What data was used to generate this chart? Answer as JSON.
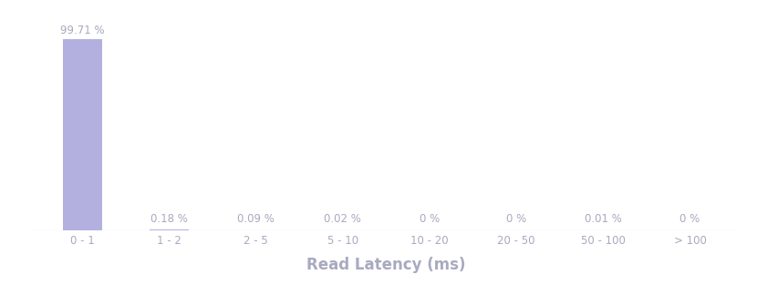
{
  "categories": [
    "0 - 1",
    "1 - 2",
    "2 - 5",
    "5 - 10",
    "10 - 20",
    "20 - 50",
    "50 - 100",
    "> 100"
  ],
  "values": [
    99.71,
    0.18,
    0.09,
    0.02,
    0.0,
    0.0,
    0.01,
    0.0
  ],
  "bar_labels": [
    "99.71 %",
    "0.18 %",
    "0.09 %",
    "0.02 %",
    "0 %",
    "0 %",
    "0.01 %",
    "0 %"
  ],
  "bar_color": "#b3b0e0",
  "xlabel": "Read Latency (ms)",
  "background_color": "#ffffff",
  "text_color": "#a8aabf",
  "label_fontsize": 8.5,
  "xlabel_fontsize": 12,
  "ylim": [
    0,
    108
  ],
  "bar_width": 0.45,
  "axhline_color": "#d4d6e0",
  "axhline_lw": 0.8
}
